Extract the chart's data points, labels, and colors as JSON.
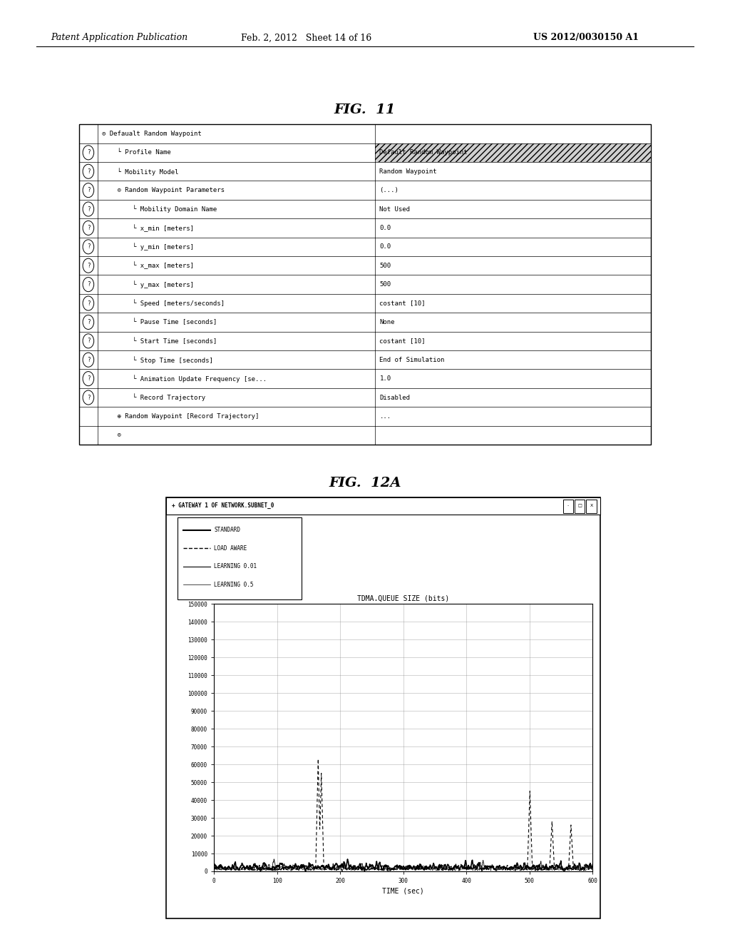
{
  "header_left": "Patent Application Publication",
  "header_mid": "Feb. 2, 2012   Sheet 14 of 16",
  "header_right": "US 2012/0030150 A1",
  "fig11_title": "FIG.  11",
  "fig12a_title": "FIG.  12A",
  "table_rows": [
    {
      "icon": false,
      "col1": "⊙ Defaualt Random Waypoint",
      "col2": ""
    },
    {
      "icon": true,
      "col1": "    └ Profile Name",
      "col2": "Default Random Waypoint"
    },
    {
      "icon": true,
      "col1": "    └ Mobility Model",
      "col2": "Random Waypoint"
    },
    {
      "icon": true,
      "col1": "    ⊙ Random Waypoint Parameters",
      "col2": "(...)"
    },
    {
      "icon": true,
      "col1": "        └ Mobility Domain Name",
      "col2": "Not Used"
    },
    {
      "icon": true,
      "col1": "        └ x_min [meters]",
      "col2": "0.0"
    },
    {
      "icon": true,
      "col1": "        └ y_min [meters]",
      "col2": "0.0"
    },
    {
      "icon": true,
      "col1": "        └ x_max [meters]",
      "col2": "500"
    },
    {
      "icon": true,
      "col1": "        └ y_max [meters]",
      "col2": "500"
    },
    {
      "icon": true,
      "col1": "        └ Speed [meters/seconds]",
      "col2": "costant [10]"
    },
    {
      "icon": true,
      "col1": "        └ Pause Time [seconds]",
      "col2": "None"
    },
    {
      "icon": true,
      "col1": "        └ Start Time [seconds]",
      "col2": "costant [10]"
    },
    {
      "icon": true,
      "col1": "        └ Stop Time [seconds]",
      "col2": "End of Simulation"
    },
    {
      "icon": true,
      "col1": "        └ Animation Update Frequency [se...",
      "col2": "1.0"
    },
    {
      "icon": true,
      "col1": "        └ Record Trajectory",
      "col2": "Disabled"
    },
    {
      "icon": false,
      "col1": "    ⊕ Random Waypoint [Record Trajectory]",
      "col2": "..."
    },
    {
      "icon": false,
      "col1": "    ⊙",
      "col2": ""
    }
  ],
  "window_title": "+ GATEWAY 1 OF NETWORK.SUBNET_0",
  "legend_entries": [
    {
      "label": "STANDARD",
      "linestyle": "-",
      "linewidth": 1.5
    },
    {
      "label": "LOAD AWARE",
      "linestyle": "--",
      "linewidth": 1.0
    },
    {
      "label": "LEARNING 0.01",
      "linestyle": "-",
      "linewidth": 0.8
    },
    {
      "label": "LEARNING 0.5",
      "linestyle": "-",
      "linewidth": 0.5
    }
  ],
  "chart_title": "TDMA.QUEUE SIZE (bits)",
  "xlabel": "TIME (sec)",
  "yticks": [
    0,
    10000,
    20000,
    30000,
    40000,
    50000,
    60000,
    70000,
    80000,
    90000,
    100000,
    110000,
    120000,
    130000,
    140000,
    150000
  ],
  "xticks": [
    0,
    100,
    200,
    300,
    400,
    500,
    600
  ],
  "xlim": [
    0,
    600
  ],
  "ylim": [
    0,
    150000
  ],
  "bg_color": "#ffffff"
}
